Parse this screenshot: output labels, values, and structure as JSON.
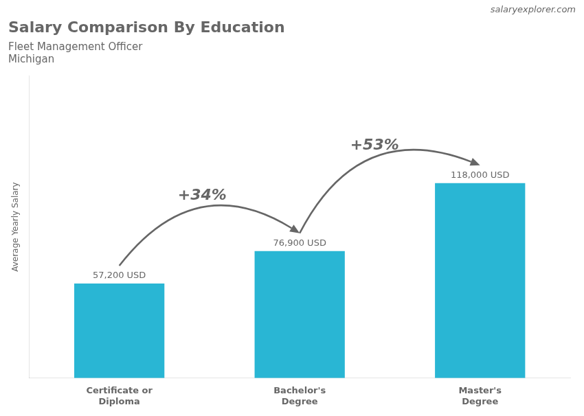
{
  "chart_data": {
    "type": "bar",
    "title": "Salary Comparison By Education",
    "subtitle": "Fleet Management Officer",
    "location": "Michigan",
    "source": "salaryexplorer.com",
    "y_label": "Average Yearly Salary",
    "categories": [
      "Certificate or\nDiploma",
      "Bachelor's\nDegree",
      "Master's\nDegree"
    ],
    "values": [
      57200,
      76900,
      118000
    ],
    "value_labels": [
      "57,200 USD",
      "76,900 USD",
      "118,000 USD"
    ],
    "data_labels": true,
    "annotations": [
      "+34%",
      "+53%"
    ],
    "color": "#29b6d4",
    "ylim": [
      0,
      182900
    ],
    "yticks": [],
    "tick_labels": "x",
    "grid": false,
    "legend": false
  }
}
